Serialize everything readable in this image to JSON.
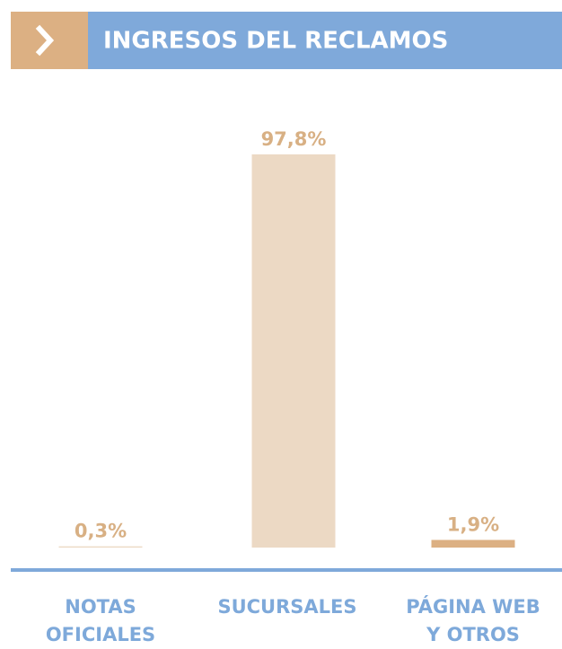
{
  "chart_data": {
    "type": "bar",
    "title": "INGRESOS DEL RECLAMOS",
    "categories": [
      "NOTAS\nOFICIALES",
      "SUCURSALES",
      "PÁGINA WEB\nY OTROS"
    ],
    "values": [
      0.3,
      97.8,
      1.9
    ],
    "value_labels": [
      "0,3%",
      "97,8%",
      "1,9%"
    ],
    "colors": [
      "#ecd9c4",
      "#ecd9c4",
      "#dcb083"
    ]
  }
}
